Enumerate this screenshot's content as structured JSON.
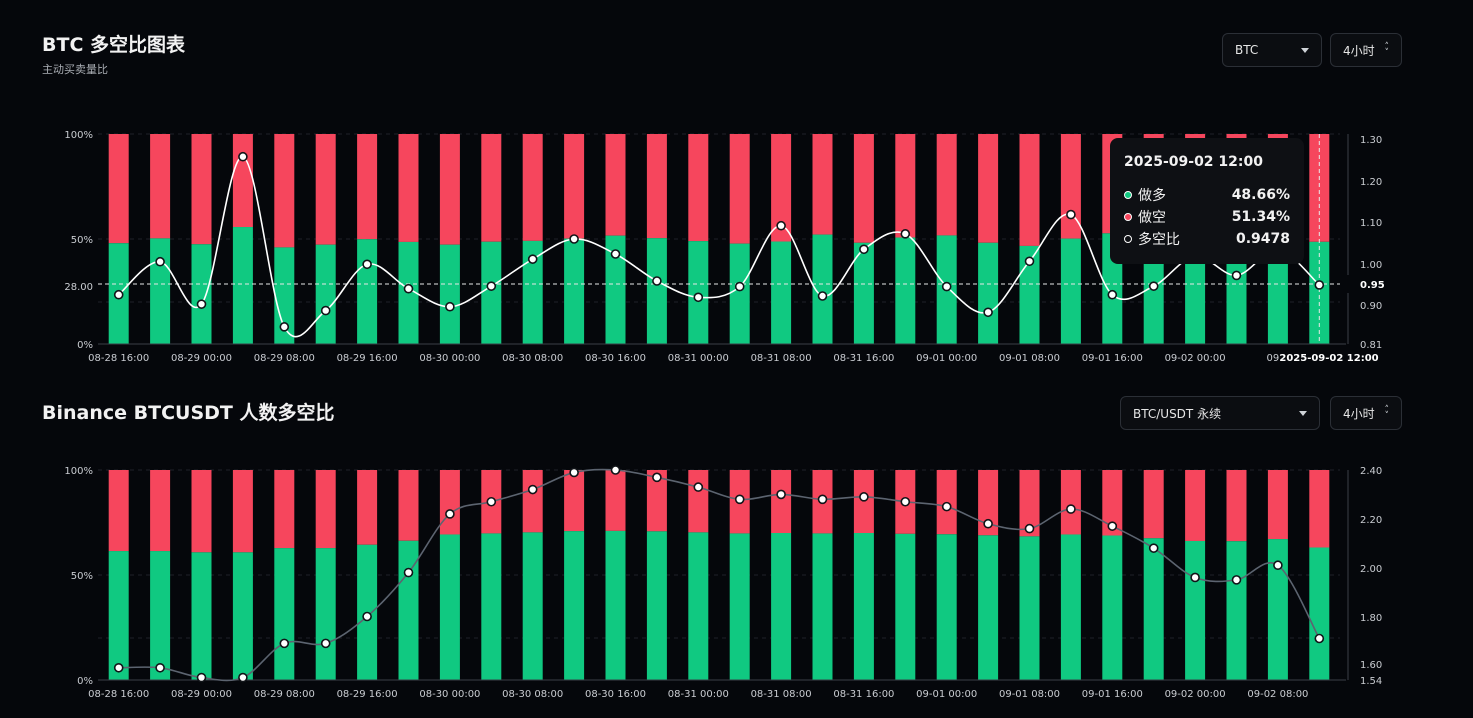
{
  "chart1": {
    "title": "BTC 多空比图表",
    "subtitle": "主动买卖量比",
    "coin_select": "BTC",
    "interval_select": "4小时"
  },
  "chart2": {
    "title": "Binance BTCUSDT 人数多空比",
    "pair_select": "BTC/USDT 永续",
    "interval_select": "4小时"
  },
  "tooltip": {
    "time": "2025-09-02 12:00",
    "long_label": "做多",
    "long_value": "48.66%",
    "short_label": "做空",
    "short_value": "51.34%",
    "ratio_label": "多空比",
    "ratio_value": "0.9478"
  },
  "colors": {
    "long": "#10c981",
    "short": "#f6465d",
    "background": "#05070b",
    "line1": "#ffffff",
    "line2": "#5c6470"
  },
  "chart_data": [
    {
      "type": "bar",
      "title": "BTC 多空比图表",
      "x_tick_labels": [
        "08-28 16:00",
        "08-29 00:00",
        "08-29 08:00",
        "08-29 16:00",
        "08-30 00:00",
        "08-30 08:00",
        "08-30 16:00",
        "08-31 00:00",
        "08-31 08:00",
        "08-31 16:00",
        "09-01 00:00",
        "09-01 08:00",
        "09-01 16:00",
        "09-02 00:00",
        "09-0"
      ],
      "highlight_x_label": "2025-09-02 12:00",
      "left_axis_ticks": [
        "100%",
        "50%",
        "28.00",
        "0%"
      ],
      "right_axis_ticks": [
        "1.30",
        "1.20",
        "1.10",
        "1.00",
        "0.90",
        "0.81"
      ],
      "crosshair_value": 0.95,
      "crosshair_left_label": "28.00",
      "crosshair_right_label": "0.95",
      "y_left_lim": [
        0,
        100
      ],
      "y_right_lim": [
        0.81,
        1.3
      ],
      "series": [
        {
          "name": "做多",
          "axis": "left",
          "values": [
            48.0,
            50.3,
            47.5,
            55.7,
            46.0,
            47.3,
            49.9,
            48.6,
            47.3,
            48.7,
            49.1,
            50.2,
            51.6,
            50.4,
            49.0,
            47.8,
            48.8,
            52.1,
            48.2,
            50.7,
            51.7,
            48.2,
            46.7,
            50.2,
            52.7,
            48.6,
            48.7,
            48.7,
            48.7,
            48.66
          ]
        },
        {
          "name": "做空",
          "axis": "left",
          "values": [
            52.0,
            49.7,
            52.5,
            44.3,
            54.0,
            52.7,
            50.1,
            51.4,
            52.7,
            51.3,
            50.9,
            49.8,
            48.4,
            49.6,
            51.0,
            52.2,
            51.2,
            47.9,
            51.8,
            49.3,
            48.3,
            51.8,
            53.3,
            49.8,
            47.3,
            51.4,
            51.3,
            51.3,
            51.3,
            51.34
          ]
        },
        {
          "name": "多空比",
          "axis": "right",
          "type": "line",
          "values": [
            0.925,
            1.002,
            0.903,
            1.247,
            0.85,
            0.888,
            0.996,
            0.939,
            0.897,
            0.945,
            1.008,
            1.055,
            1.02,
            0.957,
            0.919,
            0.944,
            1.086,
            0.922,
            1.031,
            1.067,
            0.944,
            0.884,
            1.003,
            1.112,
            0.925,
            0.945,
            1.015,
            0.97,
            1.03,
            0.9478
          ]
        }
      ]
    },
    {
      "type": "bar",
      "title": "Binance BTCUSDT 人数多空比",
      "x_tick_labels": [
        "08-28 16:00",
        "08-29 00:00",
        "08-29 08:00",
        "08-29 16:00",
        "08-30 00:00",
        "08-30 08:00",
        "08-30 16:00",
        "08-31 00:00",
        "08-31 08:00",
        "08-31 16:00",
        "09-01 00:00",
        "09-01 08:00",
        "09-01 16:00",
        "09-02 00:00",
        "09-02 08:00"
      ],
      "left_axis_ticks": [
        "100%",
        "50%",
        "0%"
      ],
      "right_axis_ticks": [
        "2.40",
        "2.20",
        "2.00",
        "1.80",
        "1.60",
        "1.54"
      ],
      "y_left_lim": [
        0,
        100
      ],
      "y_right_lim": [
        1.54,
        2.4
      ],
      "series": [
        {
          "name": "做多",
          "axis": "left",
          "values": [
            61.4,
            61.4,
            60.8,
            60.8,
            62.8,
            62.8,
            64.4,
            66.3,
            69.3,
            69.8,
            70.3,
            70.9,
            71.0,
            70.8,
            70.3,
            69.8,
            70.0,
            69.8,
            70.0,
            69.6,
            69.4,
            68.9,
            68.4,
            69.3,
            68.8,
            67.5,
            66.2,
            66.1,
            67.1,
            63.1
          ]
        },
        {
          "name": "做空",
          "axis": "left",
          "values": [
            38.6,
            38.6,
            39.2,
            39.2,
            37.2,
            37.2,
            35.6,
            33.7,
            30.7,
            30.2,
            29.7,
            29.1,
            29.0,
            29.2,
            29.7,
            30.2,
            30.0,
            30.2,
            30.0,
            30.4,
            30.6,
            31.1,
            31.6,
            30.7,
            31.2,
            32.5,
            33.8,
            33.9,
            32.9,
            36.9
          ]
        },
        {
          "name": "多空比",
          "axis": "right",
          "type": "line",
          "values": [
            1.59,
            1.59,
            1.55,
            1.55,
            1.69,
            1.69,
            1.8,
            1.98,
            2.22,
            2.27,
            2.32,
            2.39,
            2.4,
            2.37,
            2.33,
            2.28,
            2.3,
            2.28,
            2.29,
            2.27,
            2.25,
            2.18,
            2.16,
            2.24,
            2.17,
            2.08,
            1.96,
            1.95,
            2.01,
            1.71
          ]
        }
      ]
    }
  ]
}
